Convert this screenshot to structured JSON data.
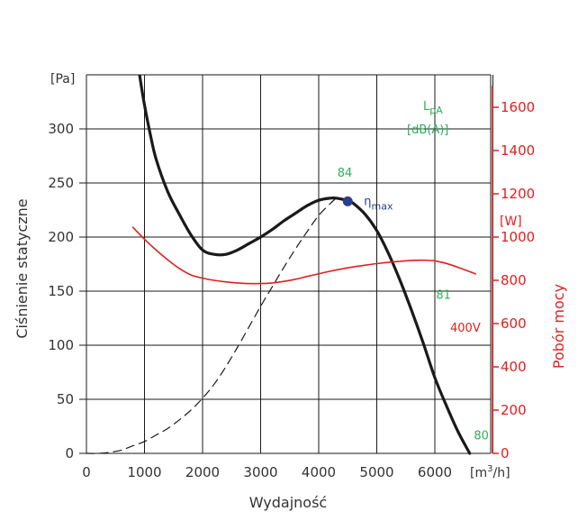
{
  "chart_data": {
    "type": "line",
    "xlabel": "Wydajność",
    "ylabel": "Ciśnienie statyczne",
    "y2label": "Pobór mocy",
    "x_unit_prefix": "[m",
    "x_unit_sup": "3",
    "x_unit_suffix": "/h]",
    "y_unit": "[Pa]",
    "y2_unit": "[W]",
    "xlim": [
      0,
      7000
    ],
    "ylim": [
      0,
      350
    ],
    "y2lim": [
      0,
      1750
    ],
    "x_ticks": [
      0,
      1000,
      2000,
      3000,
      4000,
      5000,
      6000
    ],
    "x_tick_labels": [
      "0",
      "1000",
      "2000",
      "3000",
      "4000",
      "5000",
      "6000"
    ],
    "y_ticks": [
      0,
      50,
      100,
      150,
      200,
      250,
      300
    ],
    "y_tick_labels": [
      "0",
      "50",
      "100",
      "150",
      "200",
      "250",
      "300"
    ],
    "y2_ticks": [
      0,
      200,
      400,
      600,
      800,
      1000,
      1200,
      1400,
      1600
    ],
    "y2_tick_labels": [
      "0",
      "200",
      "400",
      "600",
      "800",
      "1000",
      "1200",
      "1400",
      "1600"
    ],
    "grid": true,
    "sound_legend_line1": "L",
    "sound_legend_sub": "pA",
    "sound_legend_line2": "[dB(A)]",
    "series": [
      {
        "axis": "left",
        "style": "solid",
        "color": "#1a1a1a",
        "x": [
          900,
          1000,
          1100,
          1200,
          1400,
          1600,
          1800,
          2000,
          2200,
          2400,
          2600,
          2800,
          3000,
          3200,
          3400,
          3600,
          3800,
          4000,
          4200,
          4300,
          4400,
          4500,
          4600,
          4800,
          5000,
          5200,
          5400,
          5600,
          5800,
          6000,
          6200,
          6400,
          6600
        ],
        "y": [
          355,
          322,
          295,
          272,
          242,
          221,
          202,
          188,
          184,
          184,
          188,
          194,
          200,
          207,
          215,
          222,
          229,
          234,
          236,
          236,
          235,
          234,
          231,
          221,
          206,
          185,
          160,
          132,
          102,
          70,
          44,
          20,
          0
        ]
      },
      {
        "axis": "left",
        "style": "dashed",
        "color": "#1a1a1a",
        "x": [
          0,
          200,
          400,
          600,
          800,
          1000,
          1200,
          1400,
          1600,
          1800,
          2000,
          2200,
          2400,
          2600,
          2800,
          3000,
          3200,
          3400,
          3600,
          3800,
          4000,
          4200,
          4300
        ],
        "y": [
          0,
          0,
          1,
          3,
          7,
          11,
          17,
          23,
          31,
          40,
          51,
          64,
          80,
          98,
          117,
          136,
          154,
          172,
          189,
          205,
          220,
          231,
          236
        ]
      },
      {
        "axis": "right",
        "style": "solid",
        "color": "#e02020",
        "label": "400V",
        "x": [
          800,
          1000,
          1200,
          1400,
          1600,
          1800,
          2000,
          2200,
          2400,
          2600,
          2800,
          3000,
          3200,
          3400,
          3600,
          3800,
          4000,
          4200,
          4400,
          4600,
          4800,
          5000,
          5200,
          5400,
          5600,
          5800,
          6000,
          6200,
          6400,
          6700
        ],
        "y": [
          1045,
          990,
          940,
          895,
          855,
          825,
          810,
          800,
          793,
          788,
          785,
          785,
          788,
          795,
          805,
          818,
          830,
          842,
          853,
          862,
          870,
          877,
          883,
          888,
          892,
          893,
          890,
          878,
          860,
          830
        ]
      }
    ],
    "points": [
      {
        "label": "η",
        "sub": "max",
        "x": 4500,
        "y": 233,
        "color": "#2e3e8f"
      }
    ],
    "sound_levels": [
      {
        "label": "84",
        "x": 4450,
        "y": 256
      },
      {
        "label": "81",
        "x": 6150,
        "y": 143
      },
      {
        "label": "80",
        "x": 6800,
        "y": 13
      }
    ]
  }
}
